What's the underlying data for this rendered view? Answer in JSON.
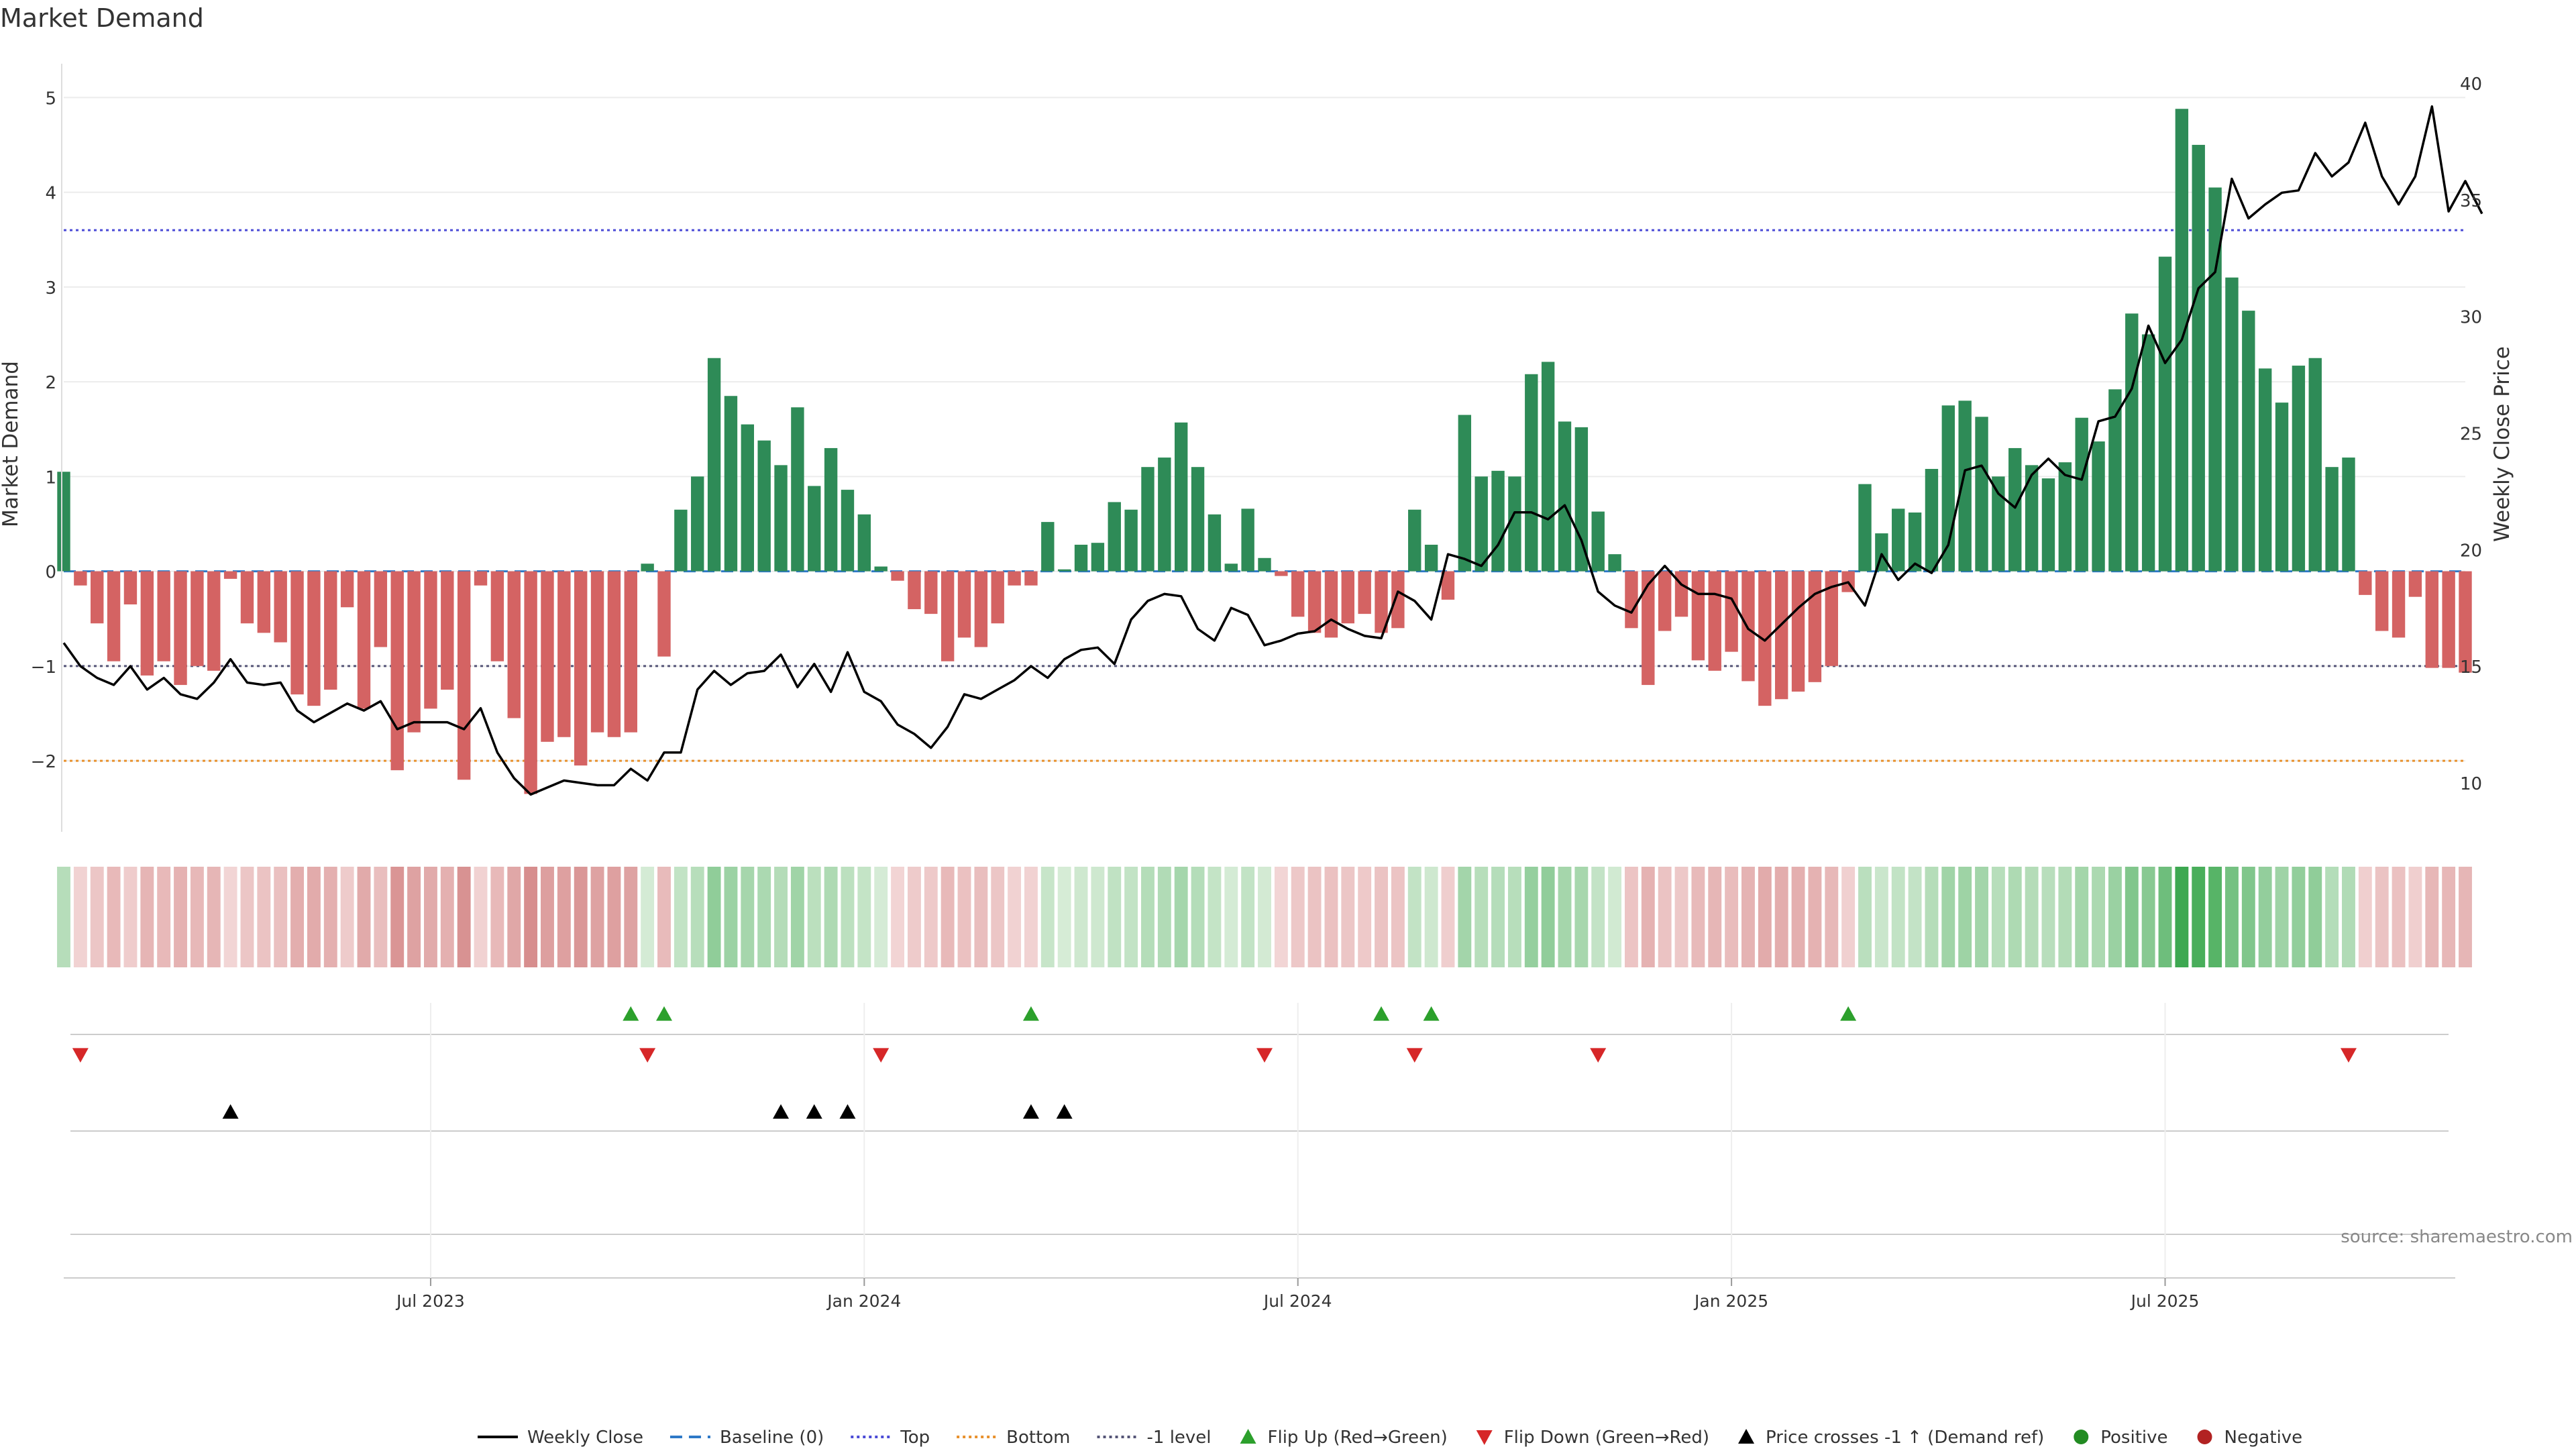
{
  "title": "Market Demand",
  "source_note": "source: sharemaestro.com",
  "colors": {
    "positive": "#2e8b57",
    "negative": "#d46363",
    "price": "#000000",
    "top_line": "#4b4bd6",
    "bottom_line": "#e8912d",
    "level_line": "#555577",
    "baseline": "#2e79c7",
    "flip_up": "#2ca02c",
    "flip_down": "#d62728",
    "price_cross": "#000000",
    "legend_positive": "#228b22",
    "legend_negative": "#b22222"
  },
  "chart_data": {
    "type": "bar",
    "title": "Market Demand",
    "ylabel": "Market Demand",
    "y2label": "Weekly Close Price",
    "ylim": [
      -2.75,
      5.25
    ],
    "y2lim": [
      7.9,
      40.4
    ],
    "y_ticks": [
      5,
      4,
      3,
      2,
      1,
      0,
      -1,
      -2
    ],
    "y_tick_labels": [
      "5",
      "4",
      "3",
      "2",
      "1",
      "0",
      "−1",
      "−2"
    ],
    "y2_ticks": [
      40,
      35,
      30,
      25,
      20,
      15,
      10
    ],
    "y2_tick_labels": [
      "40",
      "35",
      "30",
      "25",
      "20",
      "15",
      "10"
    ],
    "x_tick_labels": [
      "Jul 2023",
      "Jan 2024",
      "Jul 2024",
      "Jan 2025",
      "Jul 2025"
    ],
    "x_tick_weeks": [
      22,
      48,
      74,
      100,
      126
    ],
    "reference_lines": {
      "baseline": 0,
      "top": 3.6,
      "bottom": -2.0,
      "minus_one": -1.0
    },
    "series": [
      {
        "name": "Market Demand",
        "values": [
          1.05,
          -0.15,
          -0.55,
          -0.95,
          -0.35,
          -1.1,
          -0.95,
          -1.2,
          -1.0,
          -1.05,
          -0.08,
          -0.55,
          -0.65,
          -0.75,
          -1.3,
          -1.42,
          -1.25,
          -0.38,
          -1.45,
          -0.8,
          -2.1,
          -1.7,
          -1.45,
          -1.25,
          -2.2,
          -0.15,
          -0.95,
          -1.55,
          -2.35,
          -1.8,
          -1.75,
          -2.05,
          -1.7,
          -1.75,
          -1.7,
          0.08,
          -0.9,
          0.65,
          1.0,
          2.25,
          1.85,
          1.55,
          1.38,
          1.12,
          1.73,
          0.9,
          1.3,
          0.86,
          0.6,
          0.05,
          -0.1,
          -0.4,
          -0.45,
          -0.95,
          -0.7,
          -0.8,
          -0.55,
          -0.15,
          -0.15,
          0.52,
          0.02,
          0.28,
          0.3,
          0.73,
          0.65,
          1.1,
          1.2,
          1.57,
          1.1,
          0.6,
          0.08,
          0.66,
          0.14,
          -0.05,
          -0.48,
          -0.65,
          -0.7,
          -0.55,
          -0.45,
          -0.65,
          -0.6,
          0.65,
          0.28,
          -0.3,
          1.65,
          1.0,
          1.06,
          1.0,
          2.08,
          2.21,
          1.58,
          1.52,
          0.63,
          0.18,
          -0.6,
          -1.2,
          -0.63,
          -0.48,
          -0.94,
          -1.05,
          -0.85,
          -1.16,
          -1.42,
          -1.35,
          -1.27,
          -1.17,
          -1.0,
          -0.22,
          0.92,
          0.4,
          0.66,
          0.62,
          1.08,
          1.75,
          1.8,
          1.63,
          1.0,
          1.3,
          1.12,
          0.98,
          1.15,
          1.62,
          1.37,
          1.92,
          2.72,
          2.5,
          3.32,
          4.88,
          4.5,
          4.05,
          3.1,
          2.75,
          2.14,
          1.78,
          2.17,
          2.25,
          1.1,
          1.2,
          -0.25,
          -0.63,
          -0.7,
          -0.27,
          -1.02,
          -1.02,
          -1.07
        ]
      },
      {
        "name": "Weekly Close",
        "values": [
          16.0,
          15.0,
          14.5,
          14.2,
          15.0,
          14.0,
          14.5,
          13.8,
          13.6,
          14.3,
          15.3,
          14.3,
          14.2,
          14.3,
          13.1,
          12.6,
          13.0,
          13.4,
          13.1,
          13.5,
          12.3,
          12.6,
          12.6,
          12.6,
          12.3,
          13.2,
          11.3,
          10.2,
          9.5,
          9.8,
          10.1,
          10.0,
          9.9,
          9.9,
          10.6,
          10.1,
          11.3,
          11.3,
          14.0,
          14.8,
          14.2,
          14.7,
          14.8,
          15.5,
          14.1,
          15.1,
          13.9,
          15.6,
          13.9,
          13.5,
          12.5,
          12.1,
          11.5,
          12.4,
          13.8,
          13.6,
          14.0,
          14.4,
          15.0,
          14.5,
          15.3,
          15.7,
          15.8,
          15.1,
          17.0,
          17.8,
          18.1,
          18.0,
          16.6,
          16.1,
          17.5,
          17.2,
          15.9,
          16.1,
          16.4,
          16.5,
          17.0,
          16.6,
          16.3,
          16.2,
          18.2,
          17.8,
          17.0,
          19.8,
          19.6,
          19.3,
          20.2,
          21.6,
          21.6,
          21.3,
          21.9,
          20.4,
          18.2,
          17.6,
          17.3,
          18.5,
          19.3,
          18.5,
          18.1,
          18.1,
          17.9,
          16.6,
          16.1,
          16.8,
          17.5,
          18.1,
          18.4,
          18.6,
          17.6,
          19.8,
          18.7,
          19.4,
          19.0,
          20.2,
          23.4,
          23.6,
          22.4,
          21.8,
          23.2,
          23.9,
          23.2,
          23.0,
          25.5,
          25.7,
          26.9,
          29.6,
          28.0,
          29.0,
          31.2,
          31.9,
          35.9,
          34.2,
          34.8,
          35.3,
          35.4,
          37.0,
          36.0,
          36.6,
          38.3,
          36.0,
          34.8,
          36.0,
          39.0,
          34.5,
          35.8,
          34.4
        ]
      }
    ],
    "heat_strip": "Market Demand intensity per week (green positive, red negative)",
    "flip_up_weeks": [
      34,
      36,
      58,
      79,
      82,
      107
    ],
    "flip_down_weeks": [
      1,
      35,
      49,
      72,
      81,
      92,
      137
    ],
    "price_cross_weeks": [
      10,
      43,
      45,
      47,
      58,
      60
    ]
  },
  "legend": [
    {
      "key": "weekly_close",
      "label": "Weekly Close"
    },
    {
      "key": "baseline",
      "label": "Baseline (0)"
    },
    {
      "key": "top",
      "label": "Top"
    },
    {
      "key": "bottom",
      "label": "Bottom"
    },
    {
      "key": "minus_one",
      "label": "-1 level"
    },
    {
      "key": "flip_up",
      "label": "Flip Up (Red→Green)"
    },
    {
      "key": "flip_down",
      "label": "Flip Down (Green→Red)"
    },
    {
      "key": "price_cross",
      "label": "Price crosses -1 ↑ (Demand ref)"
    },
    {
      "key": "positive",
      "label": "Positive"
    },
    {
      "key": "negative",
      "label": "Negative"
    }
  ]
}
